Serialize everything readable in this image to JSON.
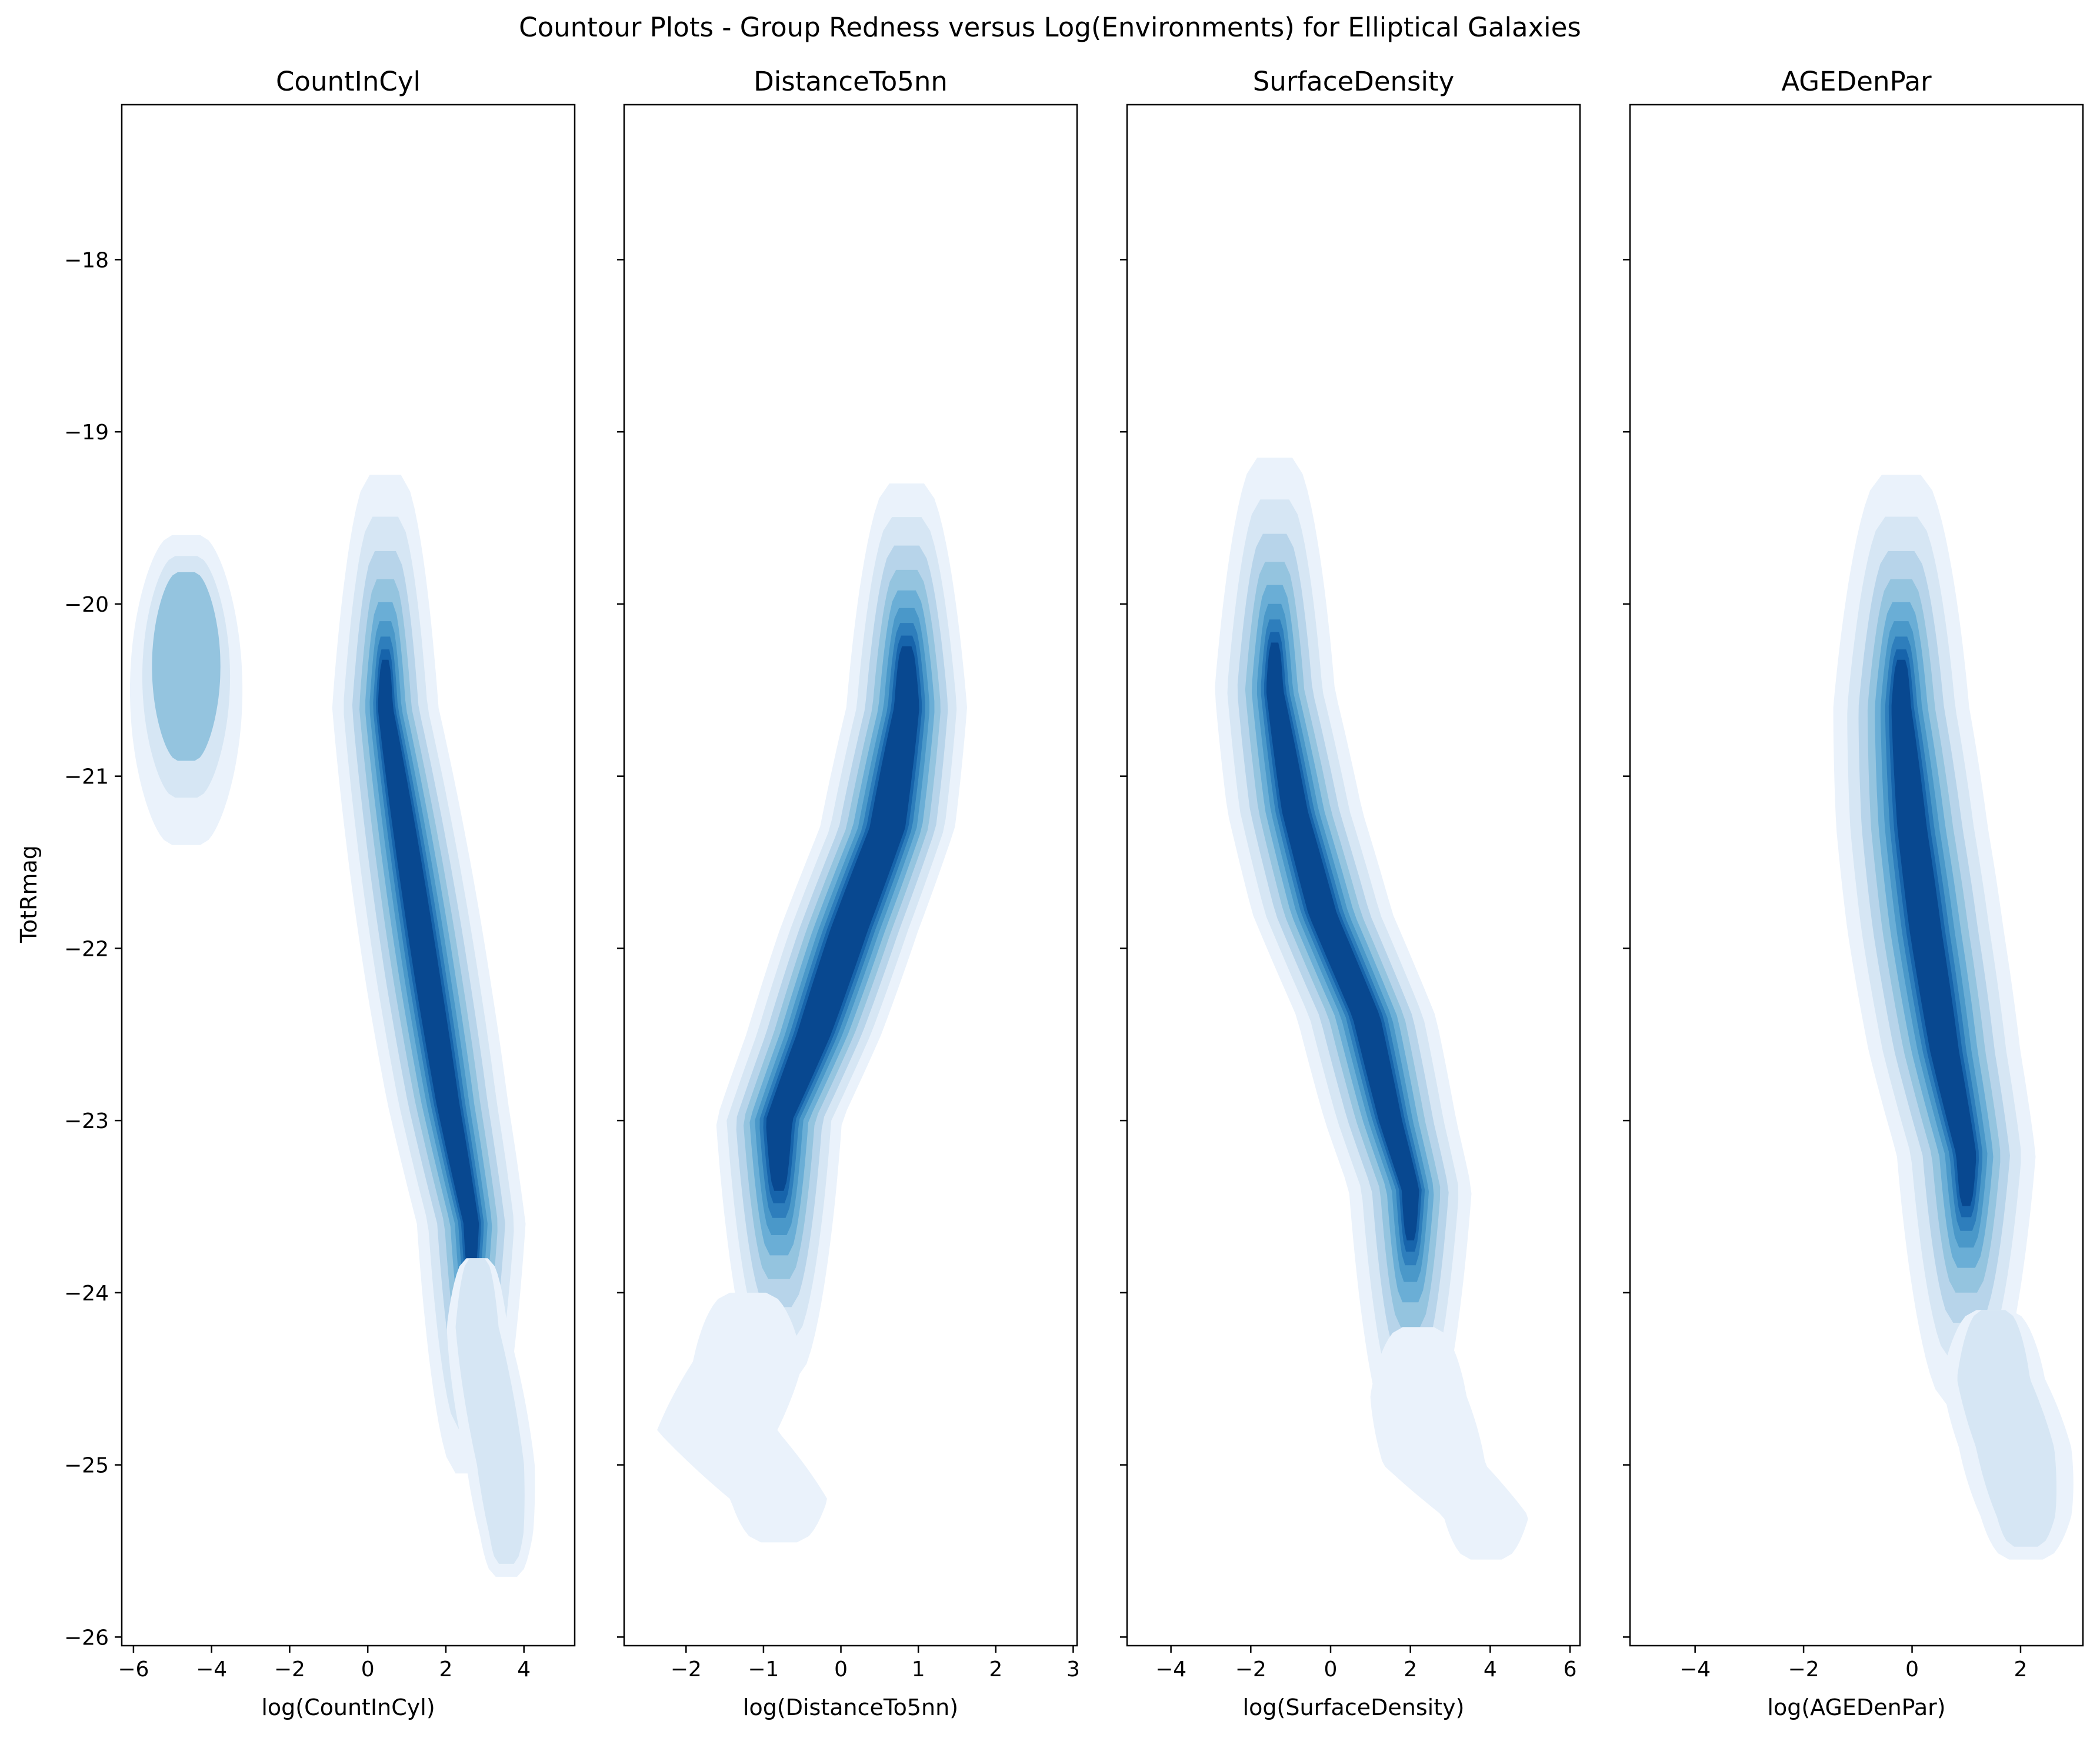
{
  "figure": {
    "suptitle": "Countour Plots - Group Redness versus Log(Environments)  for Elliptical Galaxies"
  },
  "palette": [
    "#eaf2fb",
    "#d6e6f4",
    "#b7d4ea",
    "#94c4df",
    "#6aaed6",
    "#4a98c9",
    "#2e7ebc",
    "#1764ab",
    "#084890"
  ],
  "chart_data": [
    {
      "type": "contour",
      "title": "CountInCyl",
      "xlabel": "log(CountInCyl)",
      "ylabel": "TotRmag",
      "xlim": [
        -6.3,
        5.3
      ],
      "ylim": [
        -26.05,
        -17.1
      ],
      "xticks": [
        -6,
        -4,
        -2,
        0,
        2,
        4
      ],
      "xtick_labels": [
        "−6",
        "−4",
        "−2",
        "0",
        "2",
        "4"
      ],
      "yticks": [
        -18,
        -19,
        -20,
        -21,
        -22,
        -23,
        -24,
        -25,
        -26
      ],
      "ytick_labels": [
        "−18",
        "−19",
        "−20",
        "−21",
        "−22",
        "−23",
        "−24",
        "−25",
        "−26"
      ],
      "clusters": [
        {
          "sigx": 0.45,
          "sigy": 0.55,
          "xsl": 0,
          "ys": [
            -20.15
          ],
          "xs": [
            -4.65
          ],
          "levels": 3,
          "shrink": 0.78,
          "ext_up": 0.55,
          "ext_down": 1.25
        },
        {
          "sigx": 0.5,
          "sigy": 0.55,
          "xsl": 0,
          "ys": [
            -20.6,
            -21.4,
            -22.2,
            -22.9,
            -23.6
          ],
          "xs": [
            0.45,
            1.0,
            1.55,
            2.05,
            2.65
          ],
          "levels": 9,
          "shrink": 0.82,
          "ext_up": 1.35,
          "ext_down": 1.45
        }
      ],
      "tails": [
        {
          "ys": [
            -24.2,
            -24.6,
            -25.0,
            -25.4
          ],
          "xs": [
            2.8,
            3.1,
            3.4,
            3.55
          ],
          "sigx": 0.35,
          "sigy": 0.35,
          "levels": 2
        }
      ]
    },
    {
      "type": "contour",
      "title": "DistanceTo5nn",
      "xlabel": "log(DistanceTo5nn)",
      "ylabel": "",
      "xlim": [
        -2.8,
        3.05
      ],
      "ylim": [
        -26.05,
        -17.1
      ],
      "xticks": [
        -2,
        -1,
        0,
        1,
        2,
        3
      ],
      "xtick_labels": [
        "−2",
        "−1",
        "0",
        "1",
        "2",
        "3"
      ],
      "yticks": [
        -18,
        -19,
        -20,
        -21,
        -22,
        -23,
        -24,
        -25,
        -26
      ],
      "clusters": [
        {
          "sigx": 0.28,
          "sigy": 0.55,
          "xsl": 0,
          "ys": [
            -20.6,
            -21.3,
            -21.9,
            -22.5,
            -23.0
          ],
          "xs": [
            0.85,
            0.6,
            0.1,
            -0.35,
            -0.8
          ],
          "levels": 9,
          "shrink": 0.85,
          "ext_up": 1.3,
          "ext_down": 1.5
        }
      ],
      "tails": [
        {
          "ys": [
            -24.4,
            -24.8,
            -25.2
          ],
          "xs": [
            -1.2,
            -1.6,
            -0.8
          ],
          "sigx": 0.3,
          "sigy": 0.35,
          "levels": 1
        }
      ]
    },
    {
      "type": "contour",
      "title": "SurfaceDensity",
      "xlabel": "log(SurfaceDensity)",
      "ylabel": "",
      "xlim": [
        -5.1,
        6.25
      ],
      "ylim": [
        -26.05,
        -17.1
      ],
      "xticks": [
        -4,
        -2,
        0,
        2,
        4,
        6
      ],
      "xtick_labels": [
        "−4",
        "−2",
        "0",
        "2",
        "4",
        "6"
      ],
      "yticks": [
        -18,
        -19,
        -20,
        -21,
        -22,
        -23,
        -24,
        -25,
        -26
      ],
      "clusters": [
        {
          "sigx": 0.55,
          "sigy": 0.55,
          "xsl": 0,
          "ys": [
            -20.5,
            -21.2,
            -21.8,
            -22.4,
            -23.0,
            -23.4
          ],
          "xs": [
            -1.4,
            -0.9,
            -0.2,
            0.9,
            1.5,
            2.0
          ],
          "levels": 9,
          "shrink": 0.82,
          "ext_up": 1.35,
          "ext_down": 1.45
        }
      ],
      "tails": [
        {
          "ys": [
            -24.6,
            -25.0,
            -25.3
          ],
          "xs": [
            2.2,
            2.6,
            3.9
          ],
          "sigx": 0.5,
          "sigy": 0.35,
          "levels": 1
        }
      ]
    },
    {
      "type": "contour",
      "title": "AGEDenPar",
      "xlabel": "log(AGEDenPar)",
      "ylabel": "",
      "xlim": [
        -5.2,
        3.15
      ],
      "ylim": [
        -26.05,
        -17.1
      ],
      "xticks": [
        -4,
        -2,
        0,
        2
      ],
      "xtick_labels": [
        "−4",
        "−2",
        "0",
        "2"
      ],
      "yticks": [
        -18,
        -19,
        -20,
        -21,
        -22,
        -23,
        -24,
        -25,
        -26
      ],
      "clusters": [
        {
          "sigx": 0.45,
          "sigy": 0.6,
          "xsl": 0,
          "ys": [
            -20.6,
            -21.3,
            -21.9,
            -22.6,
            -23.2
          ],
          "xs": [
            -0.2,
            0.0,
            0.25,
            0.6,
            1.0
          ],
          "levels": 9,
          "shrink": 0.82,
          "ext_up": 1.35,
          "ext_down": 1.45
        }
      ],
      "tails": [
        {
          "ys": [
            -24.5,
            -24.9,
            -25.3
          ],
          "xs": [
            1.5,
            1.9,
            2.1
          ],
          "sigx": 0.4,
          "sigy": 0.35,
          "levels": 2
        }
      ]
    }
  ]
}
